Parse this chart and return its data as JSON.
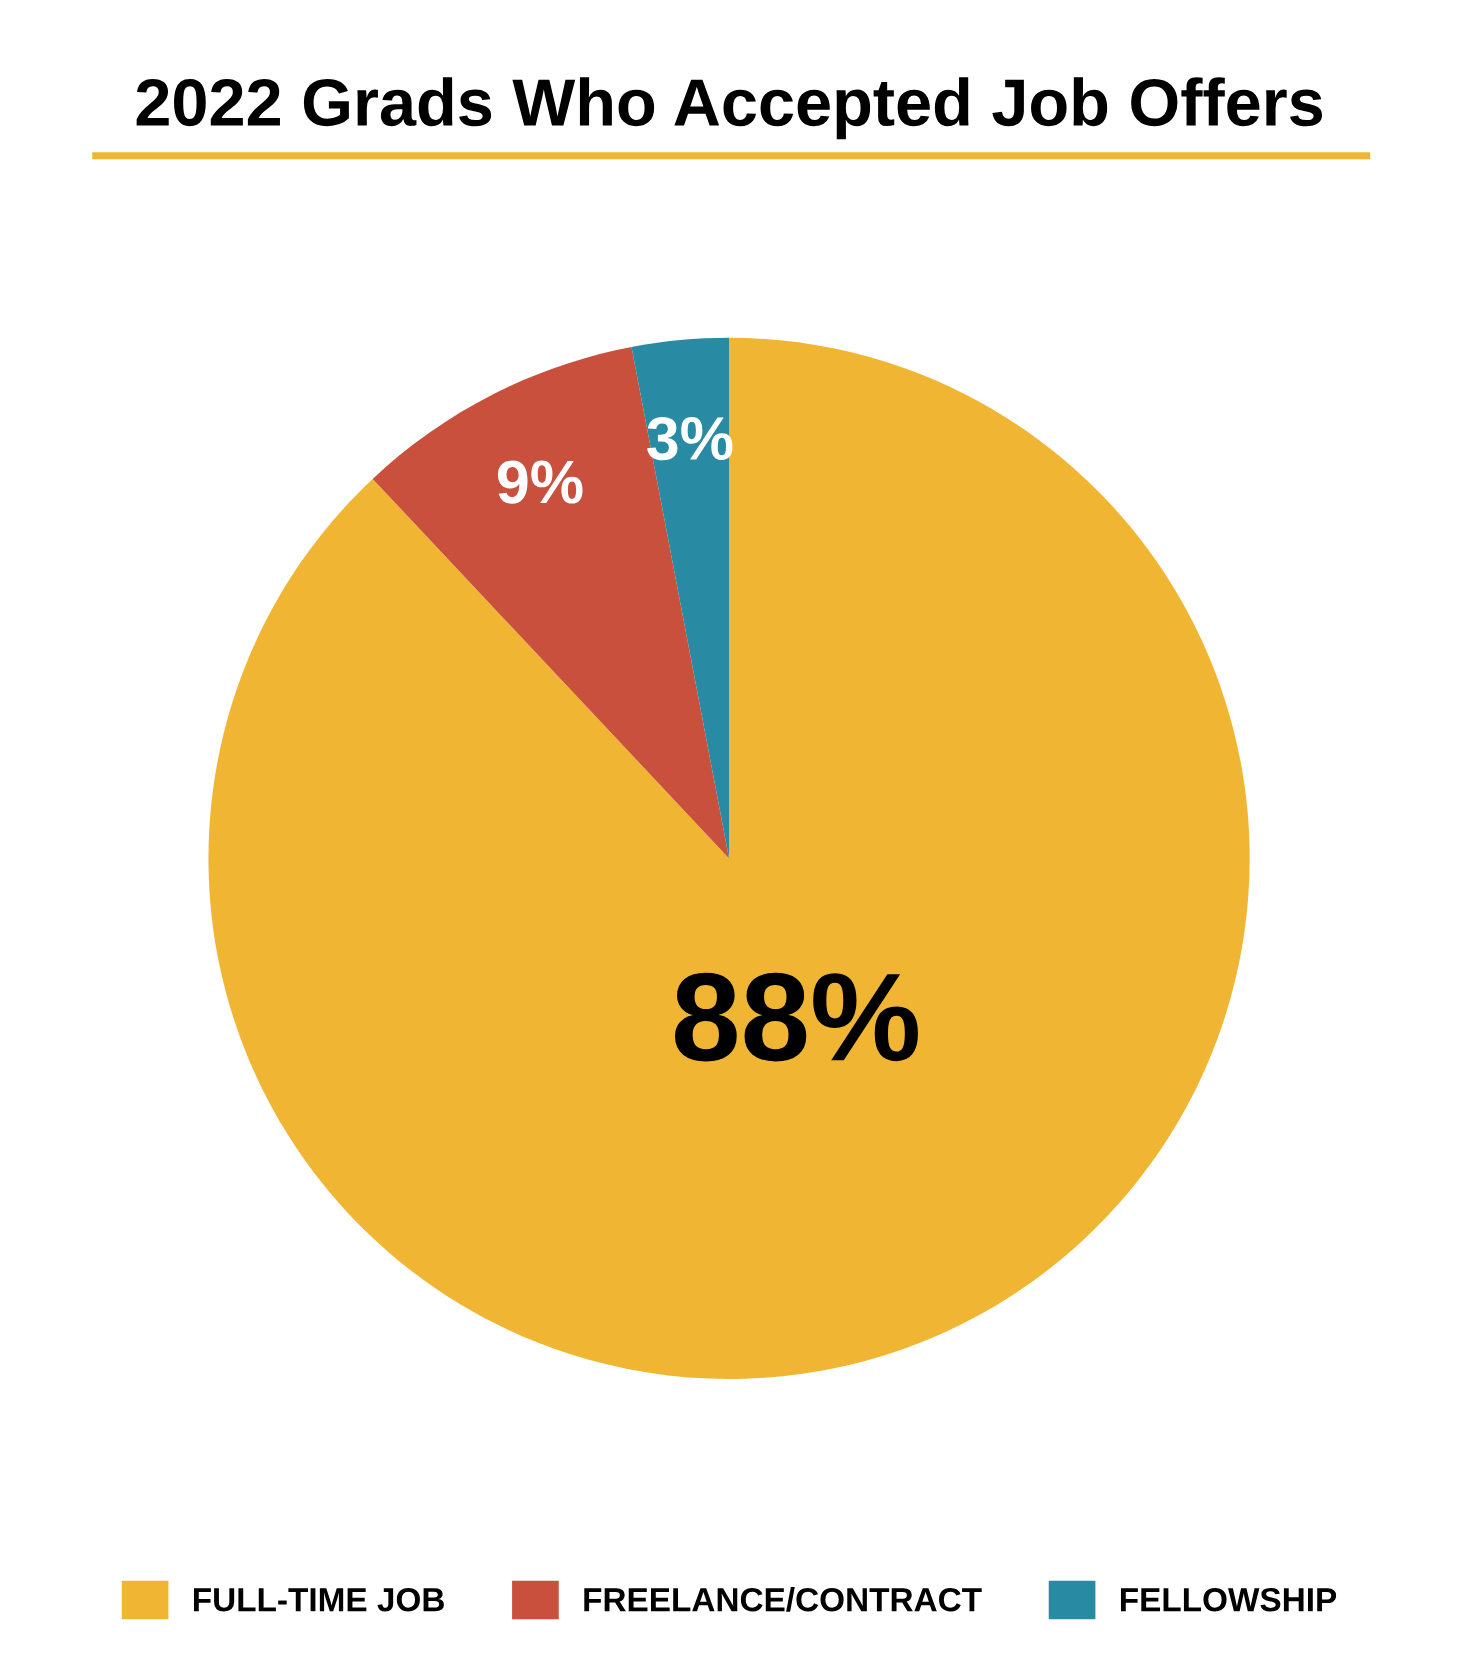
{
  "chart_data": {
    "type": "pie",
    "title": "2022 Grads Who Accepted Job Offers",
    "categories": [
      "FULL-TIME JOB",
      "FREELANCE/CONTRACT",
      "FELLOWSHIP"
    ],
    "values": [
      88,
      9,
      3
    ],
    "colors": [
      "#f0b633",
      "#c8503c",
      "#288ba3"
    ],
    "value_labels": [
      "88%",
      "9%",
      "3%"
    ],
    "legend": "bottom"
  }
}
